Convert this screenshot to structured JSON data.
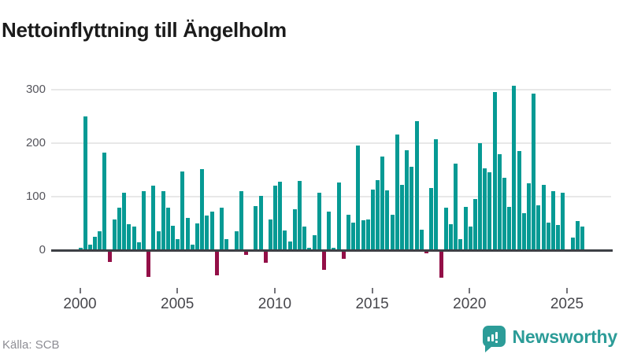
{
  "header": {
    "title": "Nettoinflyttning till Ängelholm"
  },
  "footer": {
    "source": "Källa: SCB",
    "brand_name": "Newsworthy",
    "brand_icon": "newsworthy-bubble-barchart-icon"
  },
  "colors": {
    "positive_bar": "#069a94",
    "negative_bar": "#930f47",
    "baseline": "#3d4045",
    "gridline": "#e8e8e8",
    "brand": "#2c9c98",
    "title_text": "#1b1b1b",
    "axis_text": "#47474c",
    "source_text": "#8d8d94"
  },
  "chart_data": {
    "type": "bar",
    "title": "Nettoinflyttning till Ängelholm",
    "xlabel": "",
    "ylabel": "",
    "x_tick_labels": [
      "2000",
      "2005",
      "2010",
      "2015",
      "2020",
      "2025"
    ],
    "y_tick_values": [
      0,
      100,
      200,
      300
    ],
    "ylim": [
      -60,
      325
    ],
    "grid": "horizontal",
    "legend": "none",
    "frequency": "quarterly",
    "series": [
      {
        "name": "Nettoinflyttning",
        "data_by_year": [
          {
            "year": 2000,
            "q": [
              5,
              250,
              10,
              25
            ]
          },
          {
            "year": 2001,
            "q": [
              35,
              182,
              -20,
              58
            ]
          },
          {
            "year": 2002,
            "q": [
              80,
              107,
              48,
              44
            ]
          },
          {
            "year": 2003,
            "q": [
              15,
              111,
              -48,
              121
            ]
          },
          {
            "year": 2004,
            "q": [
              35,
              110,
              80,
              45
            ]
          },
          {
            "year": 2005,
            "q": [
              20,
              147,
              60,
              10
            ]
          },
          {
            "year": 2006,
            "q": [
              50,
              151,
              65,
              72
            ]
          },
          {
            "year": 2007,
            "q": [
              -45,
              80,
              20,
              0
            ]
          },
          {
            "year": 2008,
            "q": [
              35,
              110,
              -8,
              0
            ]
          },
          {
            "year": 2009,
            "q": [
              82,
              101,
              -22,
              58
            ]
          },
          {
            "year": 2010,
            "q": [
              120,
              128,
              37,
              16
            ]
          },
          {
            "year": 2011,
            "q": [
              77,
              129,
              44,
              5
            ]
          },
          {
            "year": 2012,
            "q": [
              28,
              107,
              -35,
              72
            ]
          },
          {
            "year": 2013,
            "q": [
              5,
              127,
              -15,
              66
            ]
          },
          {
            "year": 2014,
            "q": [
              51,
              195,
              56,
              58
            ]
          },
          {
            "year": 2015,
            "q": [
              113,
              131,
              175,
              112
            ]
          },
          {
            "year": 2016,
            "q": [
              66,
              216,
              122,
              187
            ]
          },
          {
            "year": 2017,
            "q": [
              156,
              241,
              38,
              -5
            ]
          },
          {
            "year": 2018,
            "q": [
              116,
              208,
              -50,
              79
            ]
          },
          {
            "year": 2019,
            "q": [
              48,
              162,
              21,
              81
            ]
          },
          {
            "year": 2020,
            "q": [
              44,
              96,
              200,
              153
            ]
          },
          {
            "year": 2021,
            "q": [
              145,
              296,
              180,
              135
            ]
          },
          {
            "year": 2022,
            "q": [
              81,
              307,
              185,
              69
            ]
          },
          {
            "year": 2023,
            "q": [
              125,
              293,
              84,
              122
            ]
          },
          {
            "year": 2024,
            "q": [
              52,
              110,
              47,
              108
            ]
          },
          {
            "year": 2025,
            "q": [
              0,
              24,
              55,
              44
            ]
          }
        ]
      }
    ]
  }
}
